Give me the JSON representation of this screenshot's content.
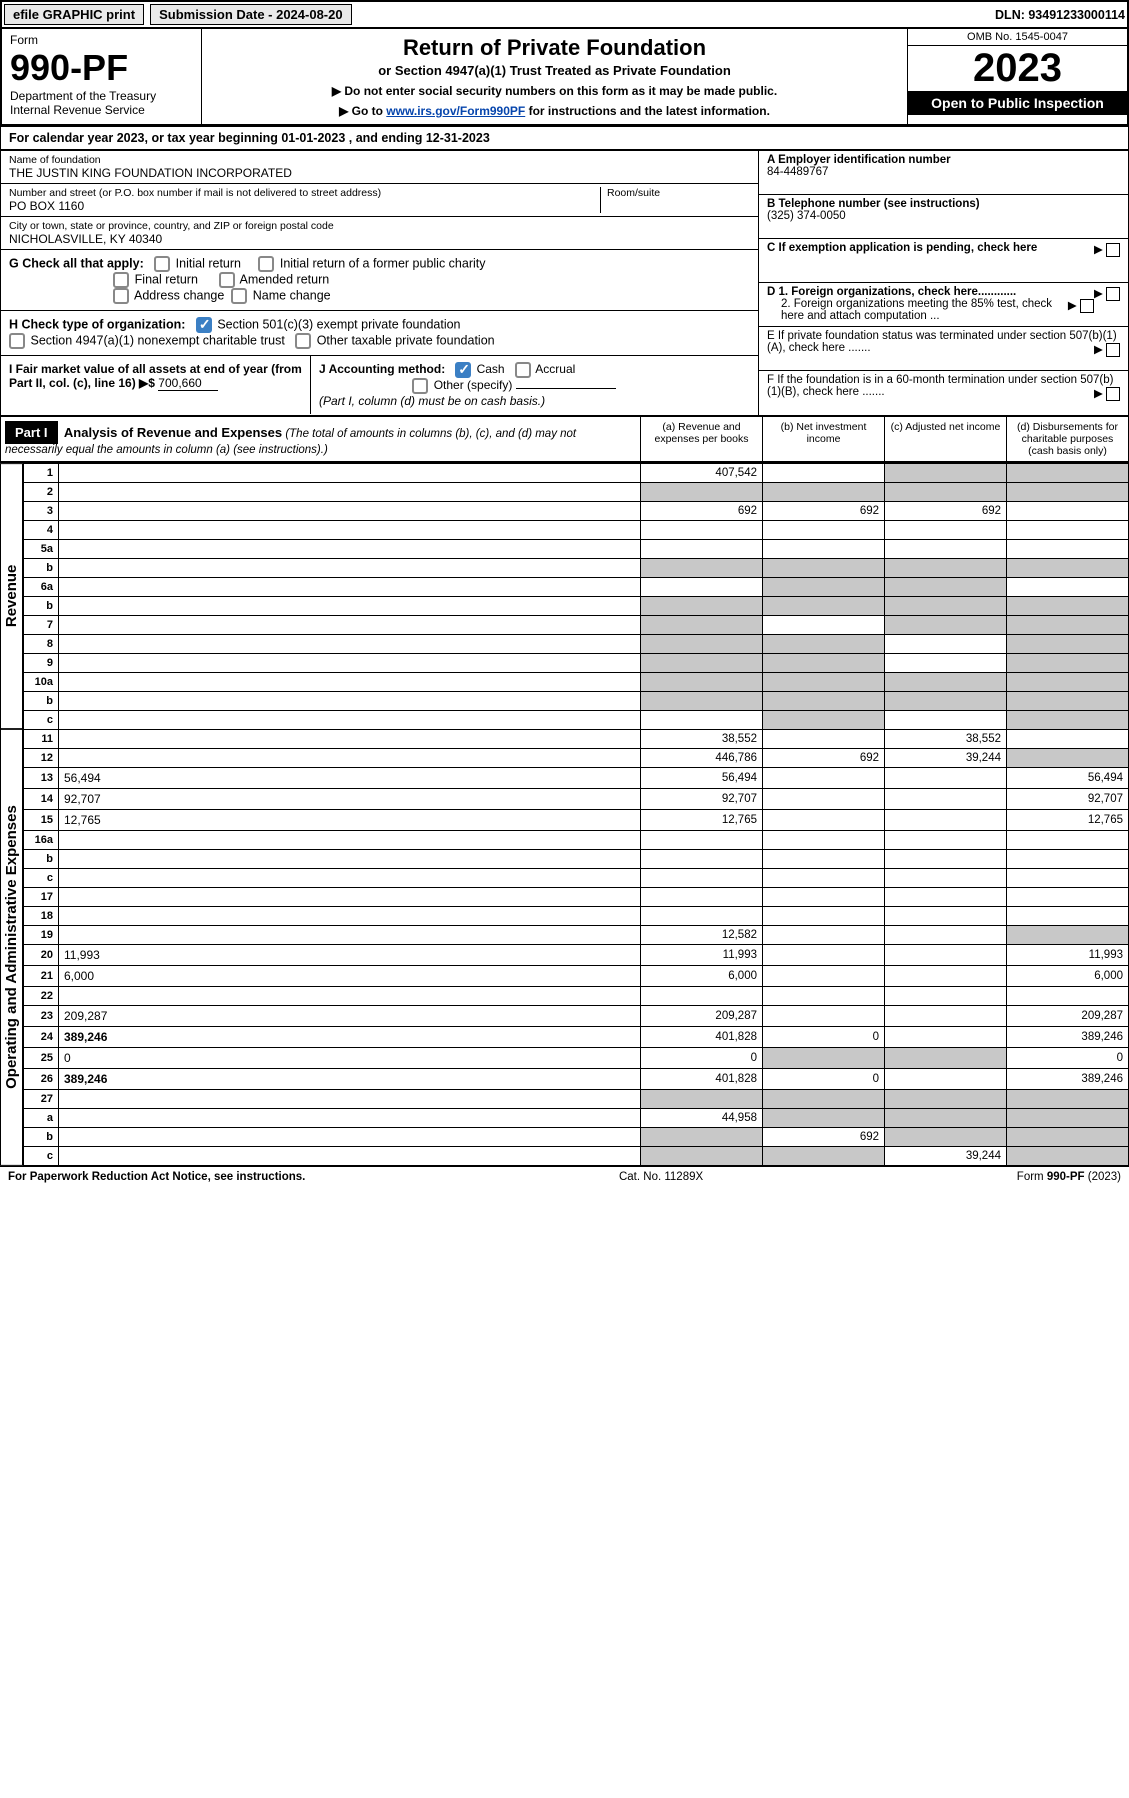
{
  "topbar": {
    "efile": "efile GRAPHIC print",
    "submission": "Submission Date - 2024-08-20",
    "dln": "DLN: 93491233000114"
  },
  "header": {
    "form_label": "Form",
    "form_number": "990-PF",
    "dept": "Department of the Treasury",
    "irs": "Internal Revenue Service",
    "title": "Return of Private Foundation",
    "subtitle": "or Section 4947(a)(1) Trust Treated as Private Foundation",
    "notice1": "▶ Do not enter social security numbers on this form as it may be made public.",
    "notice2_pre": "▶ Go to ",
    "notice2_link": "www.irs.gov/Form990PF",
    "notice2_post": " for instructions and the latest information.",
    "omb": "OMB No. 1545-0047",
    "year": "2023",
    "inspect": "Open to Public Inspection"
  },
  "calendar": "For calendar year 2023, or tax year beginning 01-01-2023                                  , and ending 12-31-2023",
  "foundation": {
    "name_label": "Name of foundation",
    "name": "THE JUSTIN KING FOUNDATION INCORPORATED",
    "addr_label": "Number and street (or P.O. box number if mail is not delivered to street address)",
    "addr": "PO BOX 1160",
    "room_label": "Room/suite",
    "city_label": "City or town, state or province, country, and ZIP or foreign postal code",
    "city": "NICHOLASVILLE, KY  40340",
    "ein_label": "A Employer identification number",
    "ein": "84-4489767",
    "phone_label": "B Telephone number (see instructions)",
    "phone": "(325) 374-0050",
    "c_label": "C If exemption application is pending, check here",
    "d1": "D 1. Foreign organizations, check here............",
    "d2": "2. Foreign organizations meeting the 85% test, check here and attach computation ...",
    "e_label": "E  If private foundation status was terminated under section 507(b)(1)(A), check here .......",
    "f_label": "F  If the foundation is in a 60-month termination under section 507(b)(1)(B), check here .......",
    "fmv": "700,660"
  },
  "g": {
    "label": "G Check all that apply:",
    "o1": "Initial return",
    "o2": "Final return",
    "o3": "Address change",
    "o4": "Initial return of a former public charity",
    "o5": "Amended return",
    "o6": "Name change"
  },
  "h": {
    "label": "H Check type of organization:",
    "o1": "Section 501(c)(3) exempt private foundation",
    "o2": "Section 4947(a)(1) nonexempt charitable trust",
    "o3": "Other taxable private foundation"
  },
  "i": {
    "label": "I Fair market value of all assets at end of year (from Part II, col. (c), line 16) ▶$"
  },
  "j": {
    "label": "J Accounting method:",
    "cash": "Cash",
    "accrual": "Accrual",
    "other": "Other (specify)",
    "note": "(Part I, column (d) must be on cash basis.)"
  },
  "part1": {
    "label": "Part I",
    "title": "Analysis of Revenue and Expenses",
    "note": "(The total of amounts in columns (b), (c), and (d) may not necessarily equal the amounts in column (a) (see instructions).)",
    "col_a": "(a) Revenue and expenses per books",
    "col_b": "(b) Net investment income",
    "col_c": "(c) Adjusted net income",
    "col_d": "(d) Disbursements for charitable purposes (cash basis only)"
  },
  "side": {
    "revenue": "Revenue",
    "expenses": "Operating and Administrative Expenses"
  },
  "rows": [
    {
      "n": "1",
      "d": "",
      "a": "407,542",
      "b": "",
      "c": "",
      "sb": false,
      "sc": true,
      "sd": true
    },
    {
      "n": "2",
      "d": "",
      "a": "",
      "b": "",
      "c": "",
      "sa": true,
      "sb": true,
      "sc": true,
      "sd": true
    },
    {
      "n": "3",
      "d": "",
      "a": "692",
      "b": "692",
      "c": "692"
    },
    {
      "n": "4",
      "d": "",
      "a": "",
      "b": "",
      "c": ""
    },
    {
      "n": "5a",
      "d": "",
      "a": "",
      "b": "",
      "c": ""
    },
    {
      "n": "b",
      "d": "",
      "a": "",
      "b": "",
      "c": "",
      "sa": true,
      "sb": true,
      "sc": true,
      "sd": true
    },
    {
      "n": "6a",
      "d": "",
      "a": "",
      "b": "",
      "c": "",
      "sb": true,
      "sc": true
    },
    {
      "n": "b",
      "d": "",
      "a": "",
      "b": "",
      "c": "",
      "sa": true,
      "sb": true,
      "sc": true,
      "sd": true
    },
    {
      "n": "7",
      "d": "",
      "a": "",
      "b": "",
      "c": "",
      "sa": true,
      "sc": true,
      "sd": true
    },
    {
      "n": "8",
      "d": "",
      "a": "",
      "b": "",
      "c": "",
      "sa": true,
      "sb": true,
      "sd": true
    },
    {
      "n": "9",
      "d": "",
      "a": "",
      "b": "",
      "c": "",
      "sa": true,
      "sb": true,
      "sd": true
    },
    {
      "n": "10a",
      "d": "",
      "a": "",
      "b": "",
      "c": "",
      "sa": true,
      "sb": true,
      "sc": true,
      "sd": true
    },
    {
      "n": "b",
      "d": "",
      "a": "",
      "b": "",
      "c": "",
      "sa": true,
      "sb": true,
      "sc": true,
      "sd": true
    },
    {
      "n": "c",
      "d": "",
      "a": "",
      "b": "",
      "c": "",
      "sb": true,
      "sd": true
    },
    {
      "n": "11",
      "d": "",
      "a": "38,552",
      "b": "",
      "c": "38,552"
    },
    {
      "n": "12",
      "d": "",
      "a": "446,786",
      "b": "692",
      "c": "39,244",
      "bold": true,
      "sd": true
    },
    {
      "n": "13",
      "d": "56,494",
      "a": "56,494",
      "b": "",
      "c": ""
    },
    {
      "n": "14",
      "d": "92,707",
      "a": "92,707",
      "b": "",
      "c": ""
    },
    {
      "n": "15",
      "d": "12,765",
      "a": "12,765",
      "b": "",
      "c": ""
    },
    {
      "n": "16a",
      "d": "",
      "a": "",
      "b": "",
      "c": ""
    },
    {
      "n": "b",
      "d": "",
      "a": "",
      "b": "",
      "c": ""
    },
    {
      "n": "c",
      "d": "",
      "a": "",
      "b": "",
      "c": ""
    },
    {
      "n": "17",
      "d": "",
      "a": "",
      "b": "",
      "c": ""
    },
    {
      "n": "18",
      "d": "",
      "a": "",
      "b": "",
      "c": ""
    },
    {
      "n": "19",
      "d": "",
      "a": "12,582",
      "b": "",
      "c": "",
      "sd": true
    },
    {
      "n": "20",
      "d": "11,993",
      "a": "11,993",
      "b": "",
      "c": ""
    },
    {
      "n": "21",
      "d": "6,000",
      "a": "6,000",
      "b": "",
      "c": ""
    },
    {
      "n": "22",
      "d": "",
      "a": "",
      "b": "",
      "c": ""
    },
    {
      "n": "23",
      "d": "209,287",
      "a": "209,287",
      "b": "",
      "c": ""
    },
    {
      "n": "24",
      "d": "389,246",
      "a": "401,828",
      "b": "0",
      "c": "",
      "bold": true
    },
    {
      "n": "25",
      "d": "0",
      "a": "0",
      "b": "",
      "c": "",
      "sb": true,
      "sc": true
    },
    {
      "n": "26",
      "d": "389,246",
      "a": "401,828",
      "b": "0",
      "c": "",
      "bold": true
    },
    {
      "n": "27",
      "d": "",
      "a": "",
      "b": "",
      "c": "",
      "sa": true,
      "sb": true,
      "sc": true,
      "sd": true
    },
    {
      "n": "a",
      "d": "",
      "a": "44,958",
      "b": "",
      "c": "",
      "bold": true,
      "sb": true,
      "sc": true,
      "sd": true
    },
    {
      "n": "b",
      "d": "",
      "a": "",
      "b": "692",
      "c": "",
      "bold": true,
      "sa": true,
      "sc": true,
      "sd": true
    },
    {
      "n": "c",
      "d": "",
      "a": "",
      "b": "",
      "c": "39,244",
      "bold": true,
      "sa": true,
      "sb": true,
      "sd": true
    }
  ],
  "footer": {
    "left": "For Paperwork Reduction Act Notice, see instructions.",
    "mid": "Cat. No. 11289X",
    "right": "Form 990-PF (2023)"
  }
}
